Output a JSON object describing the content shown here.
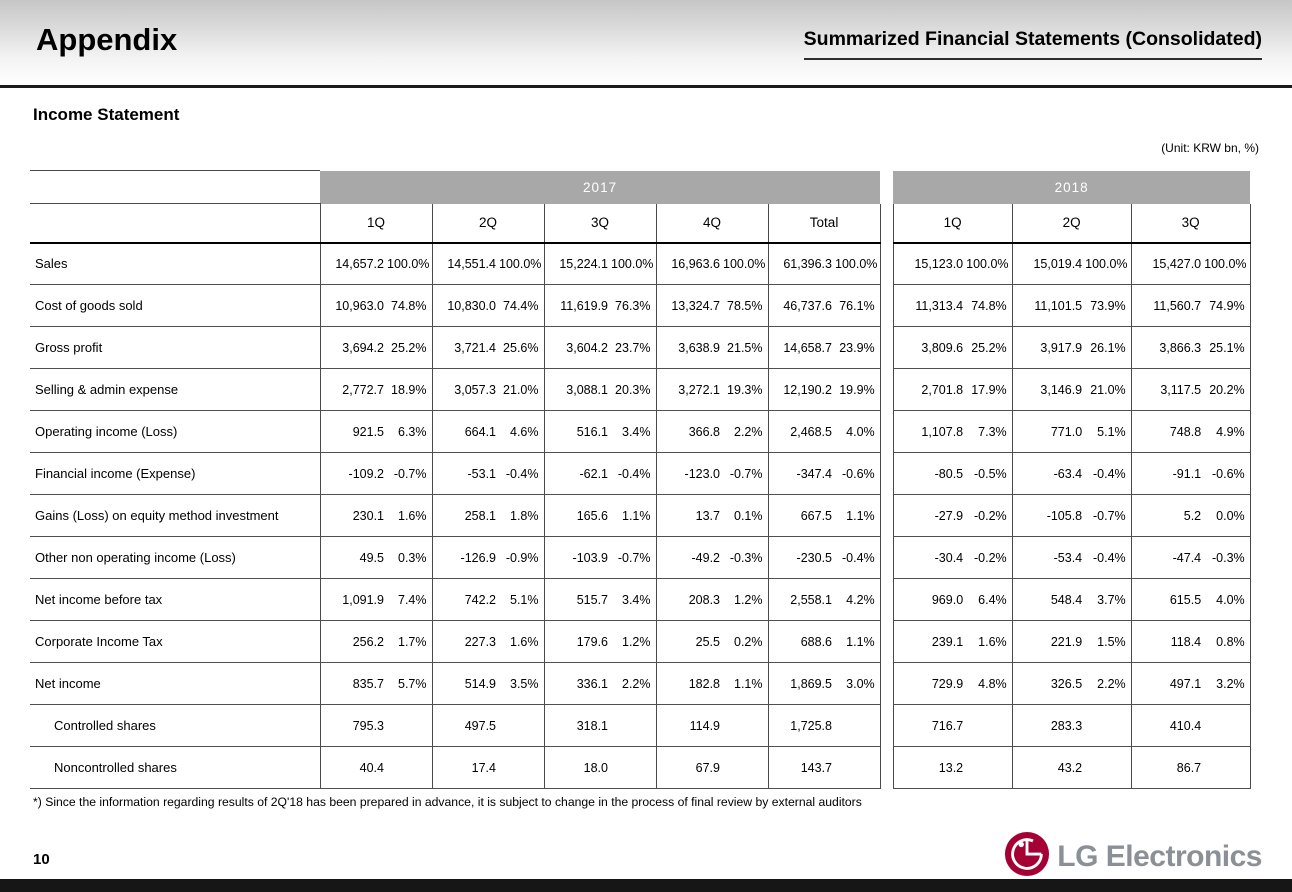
{
  "header": {
    "title": "Appendix",
    "subtitle": "Summarized Financial Statements (Consolidated)"
  },
  "section_title": "Income Statement",
  "unit_label": "(Unit: KRW bn, %)",
  "table": {
    "year_groups": [
      {
        "label": "2017",
        "quarters": [
          "1Q",
          "2Q",
          "3Q",
          "4Q",
          "Total"
        ]
      },
      {
        "label": "2018",
        "quarters": [
          "1Q",
          "2Q",
          "3Q"
        ]
      }
    ],
    "rows": [
      {
        "label": "Sales",
        "indent": false,
        "cells_2017": [
          [
            "14,657.2",
            "100.0%"
          ],
          [
            "14,551.4",
            "100.0%"
          ],
          [
            "15,224.1",
            "100.0%"
          ],
          [
            "16,963.6",
            "100.0%"
          ],
          [
            "61,396.3",
            "100.0%"
          ]
        ],
        "cells_2018": [
          [
            "15,123.0",
            "100.0%"
          ],
          [
            "15,019.4",
            "100.0%"
          ],
          [
            "15,427.0",
            "100.0%"
          ]
        ]
      },
      {
        "label": "Cost of goods sold",
        "indent": false,
        "cells_2017": [
          [
            "10,963.0",
            "74.8%"
          ],
          [
            "10,830.0",
            "74.4%"
          ],
          [
            "11,619.9",
            "76.3%"
          ],
          [
            "13,324.7",
            "78.5%"
          ],
          [
            "46,737.6",
            "76.1%"
          ]
        ],
        "cells_2018": [
          [
            "11,313.4",
            "74.8%"
          ],
          [
            "11,101.5",
            "73.9%"
          ],
          [
            "11,560.7",
            "74.9%"
          ]
        ]
      },
      {
        "label": "Gross profit",
        "indent": false,
        "cells_2017": [
          [
            "3,694.2",
            "25.2%"
          ],
          [
            "3,721.4",
            "25.6%"
          ],
          [
            "3,604.2",
            "23.7%"
          ],
          [
            "3,638.9",
            "21.5%"
          ],
          [
            "14,658.7",
            "23.9%"
          ]
        ],
        "cells_2018": [
          [
            "3,809.6",
            "25.2%"
          ],
          [
            "3,917.9",
            "26.1%"
          ],
          [
            "3,866.3",
            "25.1%"
          ]
        ]
      },
      {
        "label": "Selling & admin expense",
        "indent": false,
        "cells_2017": [
          [
            "2,772.7",
            "18.9%"
          ],
          [
            "3,057.3",
            "21.0%"
          ],
          [
            "3,088.1",
            "20.3%"
          ],
          [
            "3,272.1",
            "19.3%"
          ],
          [
            "12,190.2",
            "19.9%"
          ]
        ],
        "cells_2018": [
          [
            "2,701.8",
            "17.9%"
          ],
          [
            "3,146.9",
            "21.0%"
          ],
          [
            "3,117.5",
            "20.2%"
          ]
        ]
      },
      {
        "label": "Operating income (Loss)",
        "indent": false,
        "cells_2017": [
          [
            "921.5",
            "6.3%"
          ],
          [
            "664.1",
            "4.6%"
          ],
          [
            "516.1",
            "3.4%"
          ],
          [
            "366.8",
            "2.2%"
          ],
          [
            "2,468.5",
            "4.0%"
          ]
        ],
        "cells_2018": [
          [
            "1,107.8",
            "7.3%"
          ],
          [
            "771.0",
            "5.1%"
          ],
          [
            "748.8",
            "4.9%"
          ]
        ]
      },
      {
        "label": "Financial income (Expense)",
        "indent": false,
        "cells_2017": [
          [
            "-109.2",
            "-0.7%"
          ],
          [
            "-53.1",
            "-0.4%"
          ],
          [
            "-62.1",
            "-0.4%"
          ],
          [
            "-123.0",
            "-0.7%"
          ],
          [
            "-347.4",
            "-0.6%"
          ]
        ],
        "cells_2018": [
          [
            "-80.5",
            "-0.5%"
          ],
          [
            "-63.4",
            "-0.4%"
          ],
          [
            "-91.1",
            "-0.6%"
          ]
        ]
      },
      {
        "label": "Gains (Loss) on equity method investment",
        "indent": false,
        "cells_2017": [
          [
            "230.1",
            "1.6%"
          ],
          [
            "258.1",
            "1.8%"
          ],
          [
            "165.6",
            "1.1%"
          ],
          [
            "13.7",
            "0.1%"
          ],
          [
            "667.5",
            "1.1%"
          ]
        ],
        "cells_2018": [
          [
            "-27.9",
            "-0.2%"
          ],
          [
            "-105.8",
            "-0.7%"
          ],
          [
            "5.2",
            "0.0%"
          ]
        ]
      },
      {
        "label": "Other non operating income (Loss)",
        "indent": false,
        "cells_2017": [
          [
            "49.5",
            "0.3%"
          ],
          [
            "-126.9",
            "-0.9%"
          ],
          [
            "-103.9",
            "-0.7%"
          ],
          [
            "-49.2",
            "-0.3%"
          ],
          [
            "-230.5",
            "-0.4%"
          ]
        ],
        "cells_2018": [
          [
            "-30.4",
            "-0.2%"
          ],
          [
            "-53.4",
            "-0.4%"
          ],
          [
            "-47.4",
            "-0.3%"
          ]
        ]
      },
      {
        "label": "Net income before tax",
        "indent": false,
        "cells_2017": [
          [
            "1,091.9",
            "7.4%"
          ],
          [
            "742.2",
            "5.1%"
          ],
          [
            "515.7",
            "3.4%"
          ],
          [
            "208.3",
            "1.2%"
          ],
          [
            "2,558.1",
            "4.2%"
          ]
        ],
        "cells_2018": [
          [
            "969.0",
            "6.4%"
          ],
          [
            "548.4",
            "3.7%"
          ],
          [
            "615.5",
            "4.0%"
          ]
        ]
      },
      {
        "label": "Corporate Income Tax",
        "indent": false,
        "cells_2017": [
          [
            "256.2",
            "1.7%"
          ],
          [
            "227.3",
            "1.6%"
          ],
          [
            "179.6",
            "1.2%"
          ],
          [
            "25.5",
            "0.2%"
          ],
          [
            "688.6",
            "1.1%"
          ]
        ],
        "cells_2018": [
          [
            "239.1",
            "1.6%"
          ],
          [
            "221.9",
            "1.5%"
          ],
          [
            "118.4",
            "0.8%"
          ]
        ]
      },
      {
        "label": "Net income",
        "indent": false,
        "cells_2017": [
          [
            "835.7",
            "5.7%"
          ],
          [
            "514.9",
            "3.5%"
          ],
          [
            "336.1",
            "2.2%"
          ],
          [
            "182.8",
            "1.1%"
          ],
          [
            "1,869.5",
            "3.0%"
          ]
        ],
        "cells_2018": [
          [
            "729.9",
            "4.8%"
          ],
          [
            "326.5",
            "2.2%"
          ],
          [
            "497.1",
            "3.2%"
          ]
        ]
      },
      {
        "label": "Controlled shares",
        "indent": true,
        "cells_2017": [
          [
            "795.3",
            ""
          ],
          [
            "497.5",
            ""
          ],
          [
            "318.1",
            ""
          ],
          [
            "114.9",
            ""
          ],
          [
            "1,725.8",
            ""
          ]
        ],
        "cells_2018": [
          [
            "716.7",
            ""
          ],
          [
            "283.3",
            ""
          ],
          [
            "410.4",
            ""
          ]
        ]
      },
      {
        "label": "Noncontrolled shares",
        "indent": true,
        "cells_2017": [
          [
            "40.4",
            ""
          ],
          [
            "17.4",
            ""
          ],
          [
            "18.0",
            ""
          ],
          [
            "67.9",
            ""
          ],
          [
            "143.7",
            ""
          ]
        ],
        "cells_2018": [
          [
            "13.2",
            ""
          ],
          [
            "43.2",
            ""
          ],
          [
            "86.7",
            ""
          ]
        ]
      }
    ]
  },
  "footnote": "*) Since the information regarding results of 2Q'18 has been prepared in advance, it is subject to change in the process of final review by external auditors",
  "footer": {
    "page_number": "10",
    "logo_text": "LG Electronics",
    "logo_color": "#a50034"
  }
}
